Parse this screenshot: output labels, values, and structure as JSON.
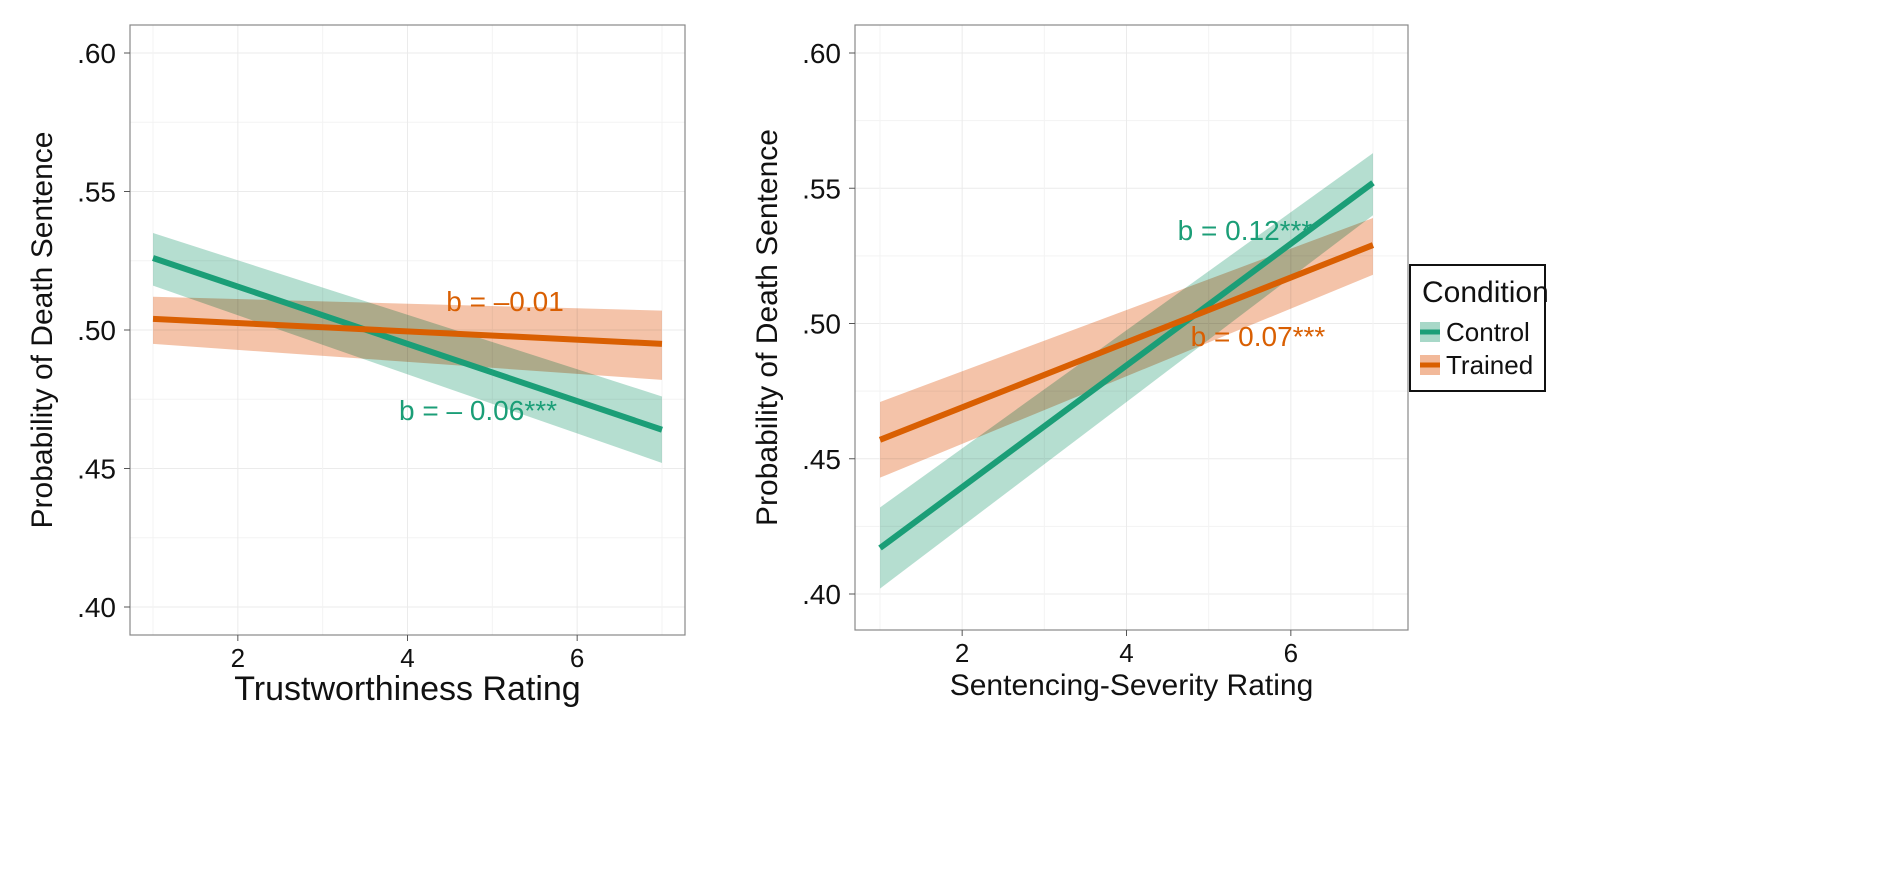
{
  "chart_data": [
    {
      "type": "line",
      "xlabel": "Trustworthiness Rating",
      "ylabel": "Probability of Death Sentence",
      "xlim": [
        0.7,
        7.3
      ],
      "ylim": [
        0.39,
        0.61
      ],
      "xticks": [
        2,
        4,
        6
      ],
      "yticks": [
        0.4,
        0.45,
        0.5,
        0.55,
        0.6
      ],
      "ytick_labels": [
        ".40",
        ".45",
        ".50",
        ".55",
        ".60"
      ],
      "grid": true,
      "series": [
        {
          "name": "Control",
          "x": [
            1,
            7
          ],
          "y": [
            0.526,
            0.464
          ],
          "lower": [
            0.516,
            0.452
          ],
          "upper": [
            0.535,
            0.476
          ],
          "annotation": "b = – 0.06***"
        },
        {
          "name": "Trained",
          "x": [
            1,
            7
          ],
          "y": [
            0.504,
            0.495
          ],
          "lower": [
            0.495,
            0.482
          ],
          "upper": [
            0.512,
            0.507
          ],
          "annotation": "b = –0.01"
        }
      ]
    },
    {
      "type": "line",
      "xlabel": "Sentencing-Severity Rating",
      "ylabel": "Probability of Death Sentence",
      "xlim": [
        0.7,
        7.3
      ],
      "ylim": [
        0.39,
        0.61
      ],
      "xticks": [
        2,
        4,
        6
      ],
      "yticks": [
        0.4,
        0.45,
        0.5,
        0.55,
        0.6
      ],
      "ytick_labels": [
        ".40",
        ".45",
        ".50",
        ".55",
        ".60"
      ],
      "grid": true,
      "series": [
        {
          "name": "Control",
          "x": [
            1,
            7
          ],
          "y": [
            0.417,
            0.552
          ],
          "lower": [
            0.402,
            0.54
          ],
          "upper": [
            0.432,
            0.563
          ],
          "annotation": "b = 0.12***"
        },
        {
          "name": "Trained",
          "x": [
            1,
            7
          ],
          "y": [
            0.457,
            0.529
          ],
          "lower": [
            0.443,
            0.518
          ],
          "upper": [
            0.471,
            0.539
          ],
          "annotation": "b = 0.07***"
        }
      ]
    }
  ],
  "legend": {
    "title": "Condition",
    "placement": "right",
    "items": [
      "Control",
      "Trained"
    ]
  },
  "colors": {
    "Control": "#1b9e77",
    "Trained": "#d95f02",
    "Control_band": "#a8d8c8",
    "Trained_band": "#f2b99a"
  }
}
